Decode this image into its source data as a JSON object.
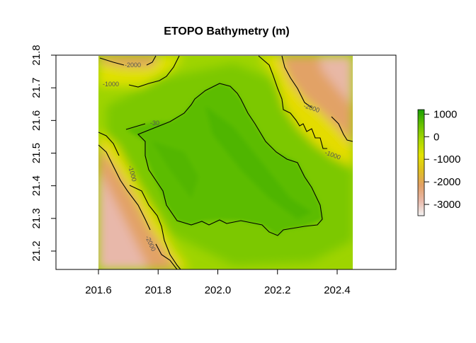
{
  "chart_data": {
    "type": "heatmap",
    "title": "ETOPO Bathymetry (m)",
    "xlabel": "",
    "ylabel": "",
    "xlim": [
      201.46,
      202.58
    ],
    "ylim": [
      21.14,
      21.8
    ],
    "raster_extent": {
      "x": [
        201.6,
        202.45
      ],
      "y": [
        21.14,
        21.8
      ]
    },
    "x_ticks": [
      "201.6",
      "201.8",
      "202.0",
      "202.2",
      "202.4"
    ],
    "x_tick_values": [
      201.6,
      201.8,
      202.0,
      202.2,
      202.4
    ],
    "y_ticks": [
      "21.2",
      "21.3",
      "21.4",
      "21.5",
      "21.6",
      "21.7",
      "21.8"
    ],
    "y_tick_values": [
      21.2,
      21.3,
      21.4,
      21.5,
      21.6,
      21.7,
      21.8
    ],
    "colorbar": {
      "range": [
        -3500,
        1200
      ],
      "ticks": [
        "1000",
        "0",
        "-1000",
        "-2000",
        "-3000"
      ],
      "tick_values": [
        1000,
        0,
        -1000,
        -2000,
        -3000
      ],
      "colors": [
        "#f2f2f2",
        "#e8b8a8",
        "#e2a066",
        "#e0c020",
        "#e2e200",
        "#a8d800",
        "#66c000",
        "#1aa000"
      ],
      "placement": "right"
    },
    "contour_labels": [
      "-30",
      "-1000",
      "-2000",
      "-1000",
      "-2000",
      "-1000",
      "-2000"
    ],
    "grid": false
  }
}
